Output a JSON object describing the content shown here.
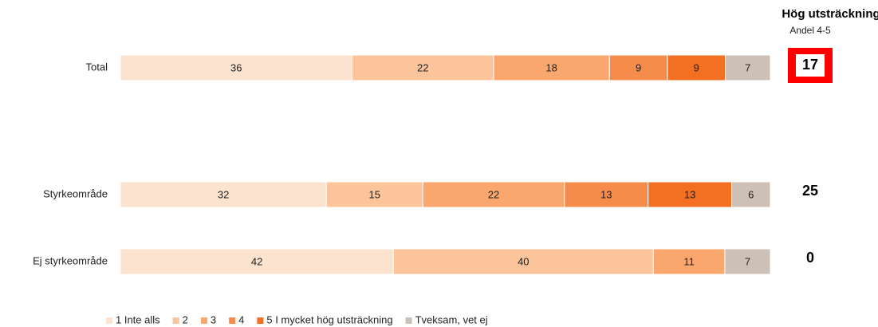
{
  "chart_data": {
    "type": "stacked-bar-horizontal",
    "categories": [
      "Total",
      "Styrkeområde",
      "Ej styrkeområde"
    ],
    "series": [
      {
        "name": "1 Inte alls",
        "color": "#fce3d0",
        "values": [
          36,
          32,
          42
        ]
      },
      {
        "name": "2",
        "color": "#fbc49b",
        "values": [
          22,
          15,
          40
        ]
      },
      {
        "name": "3",
        "color": "#f9a76e",
        "values": [
          18,
          22,
          11
        ]
      },
      {
        "name": "4",
        "color": "#f68c4b",
        "values": [
          9,
          13,
          0
        ]
      },
      {
        "name": "5 I mycket hög utsträckning",
        "color": "#f37022",
        "values": [
          9,
          13,
          0
        ]
      },
      {
        "name": "Tveksam, vet ej",
        "color": "#cdc1b7",
        "values": [
          7,
          6,
          7
        ]
      }
    ],
    "summary_title": "Hög utsträckning",
    "summary_subtitle": "Andel 4-5",
    "summary_values": [
      17,
      25,
      0
    ],
    "highlight": 0,
    "highlight_color": "#ff0000",
    "legend": "bottom"
  }
}
